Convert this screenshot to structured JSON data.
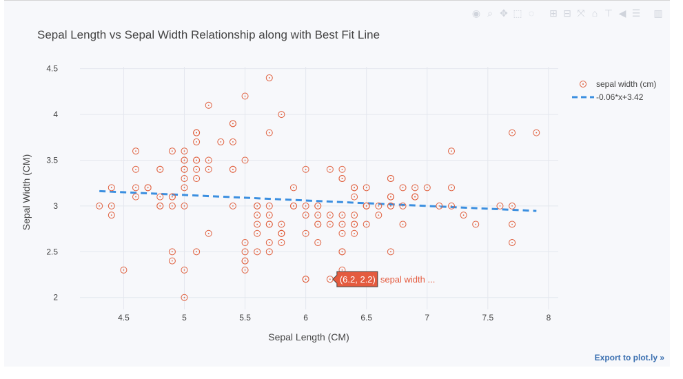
{
  "modebar": {
    "buttons": [
      {
        "icon": "camera-icon",
        "glyph": "◉"
      },
      {
        "icon": "zoom-icon",
        "glyph": "⌕"
      },
      {
        "icon": "pan-icon",
        "glyph": "✥"
      },
      {
        "icon": "box-select-icon",
        "glyph": "⬚"
      },
      {
        "icon": "lasso-select-icon",
        "glyph": "◌"
      },
      {
        "icon": "zoom-in-icon",
        "glyph": "⊞"
      },
      {
        "icon": "zoom-out-icon",
        "glyph": "⊟"
      },
      {
        "icon": "autoscale-icon",
        "glyph": "⤧"
      },
      {
        "icon": "reset-axes-icon",
        "glyph": "⌂"
      },
      {
        "icon": "spike-lines-icon",
        "glyph": "⊤"
      },
      {
        "icon": "hover-closest-icon",
        "glyph": "◀"
      },
      {
        "icon": "hover-compare-icon",
        "glyph": "☰"
      },
      {
        "icon": "plotly-logo-icon",
        "glyph": "▥"
      }
    ]
  },
  "export_label": "Export to plot.ly »",
  "hover": {
    "label": "(6.2, 2.2)",
    "series": "sepal width ...",
    "x": 6.2,
    "y": 2.2
  },
  "chart_data": {
    "type": "scatter",
    "title": "Sepal Length vs Sepal Width Relationship along with Best Fit Line",
    "xlabel": "Sepal Length (CM)",
    "ylabel": "Sepal Width (CM)",
    "xlim": [
      4.14,
      8.08
    ],
    "ylim": [
      1.87,
      4.52
    ],
    "xticks": [
      "4.5",
      "5",
      "5.5",
      "6",
      "6.5",
      "7",
      "7.5",
      "8"
    ],
    "yticks": [
      "2",
      "2.5",
      "3",
      "3.5",
      "4",
      "4.5"
    ],
    "grid": true,
    "legend_position": "top-right",
    "colors": {
      "scatter": "#e0603e",
      "line": "#3b8fe0",
      "grid": "#e4e7ee",
      "tooltip": "#e45b3f"
    },
    "series": [
      {
        "name": "sepal width (cm)",
        "mode": "markers",
        "x": [
          5.1,
          4.9,
          4.7,
          4.6,
          5.0,
          5.4,
          4.6,
          5.0,
          4.4,
          4.9,
          5.4,
          4.8,
          4.8,
          4.3,
          5.8,
          5.7,
          5.4,
          5.1,
          5.7,
          5.1,
          5.4,
          5.1,
          4.6,
          5.1,
          4.8,
          5.0,
          5.0,
          5.2,
          5.2,
          4.7,
          4.8,
          5.4,
          5.2,
          5.5,
          4.9,
          5.0,
          5.5,
          4.9,
          4.4,
          5.1,
          5.0,
          4.5,
          4.4,
          5.0,
          5.1,
          4.8,
          5.1,
          4.6,
          5.3,
          5.0,
          7.0,
          6.4,
          6.9,
          5.5,
          6.5,
          5.7,
          6.3,
          4.9,
          6.6,
          5.2,
          5.0,
          5.9,
          6.0,
          6.1,
          5.6,
          6.7,
          5.6,
          5.8,
          6.2,
          5.6,
          5.9,
          6.1,
          6.3,
          6.1,
          6.4,
          6.6,
          6.8,
          6.7,
          6.0,
          5.7,
          5.5,
          5.5,
          5.8,
          6.0,
          5.4,
          6.0,
          6.7,
          6.3,
          5.6,
          5.5,
          5.5,
          6.1,
          5.8,
          5.0,
          5.6,
          5.7,
          5.7,
          6.2,
          5.1,
          5.7,
          6.3,
          5.8,
          7.1,
          6.3,
          6.5,
          7.6,
          4.9,
          7.3,
          6.7,
          7.2,
          6.5,
          6.4,
          6.8,
          5.7,
          5.8,
          6.4,
          6.5,
          7.7,
          7.7,
          6.0,
          6.9,
          5.6,
          7.7,
          6.3,
          6.7,
          7.2,
          6.2,
          6.1,
          6.4,
          7.2,
          7.4,
          7.9,
          6.4,
          6.3,
          6.1,
          7.7,
          6.3,
          6.4,
          6.0,
          6.9,
          6.7,
          6.9,
          5.8,
          6.8,
          6.7,
          6.7,
          6.3,
          6.5,
          6.2,
          5.9
        ],
        "y": [
          3.5,
          3.0,
          3.2,
          3.1,
          3.6,
          3.9,
          3.4,
          3.4,
          2.9,
          3.1,
          3.7,
          3.4,
          3.0,
          3.0,
          4.0,
          4.4,
          3.9,
          3.5,
          3.8,
          3.8,
          3.4,
          3.7,
          3.6,
          3.3,
          3.4,
          3.0,
          3.4,
          3.5,
          3.4,
          3.2,
          3.1,
          3.4,
          4.1,
          4.2,
          3.1,
          3.2,
          3.5,
          3.6,
          3.0,
          3.4,
          3.5,
          2.3,
          3.2,
          3.5,
          3.8,
          3.0,
          3.8,
          3.2,
          3.7,
          3.3,
          3.2,
          3.2,
          3.1,
          2.3,
          2.8,
          2.8,
          3.3,
          2.4,
          2.9,
          2.7,
          2.0,
          3.0,
          2.2,
          2.9,
          2.9,
          3.1,
          3.0,
          2.7,
          2.2,
          2.5,
          3.2,
          2.8,
          2.5,
          2.8,
          2.9,
          3.0,
          2.8,
          3.0,
          2.9,
          2.6,
          2.4,
          2.4,
          2.7,
          2.7,
          3.0,
          3.4,
          3.1,
          2.3,
          3.0,
          2.5,
          2.6,
          3.0,
          2.6,
          2.3,
          2.7,
          3.0,
          2.9,
          2.9,
          2.5,
          2.8,
          3.3,
          2.7,
          3.0,
          2.9,
          3.0,
          3.0,
          2.5,
          2.9,
          2.5,
          3.6,
          3.2,
          2.7,
          3.0,
          2.5,
          2.8,
          3.2,
          3.0,
          3.8,
          2.6,
          2.2,
          3.2,
          2.8,
          2.8,
          2.7,
          3.3,
          3.2,
          2.8,
          3.0,
          2.8,
          3.0,
          2.8,
          3.8,
          2.8,
          2.8,
          2.6,
          3.0,
          3.4,
          3.1,
          3.0,
          3.1,
          3.1,
          3.1,
          2.7,
          3.2,
          3.3,
          3.0,
          2.5,
          3.0,
          3.4,
          3.0
        ]
      },
      {
        "name": "-0.06*x+3.42",
        "mode": "lines",
        "dash": "dash",
        "x": [
          4.3,
          7.9
        ],
        "y": [
          3.162,
          2.946
        ]
      }
    ]
  }
}
